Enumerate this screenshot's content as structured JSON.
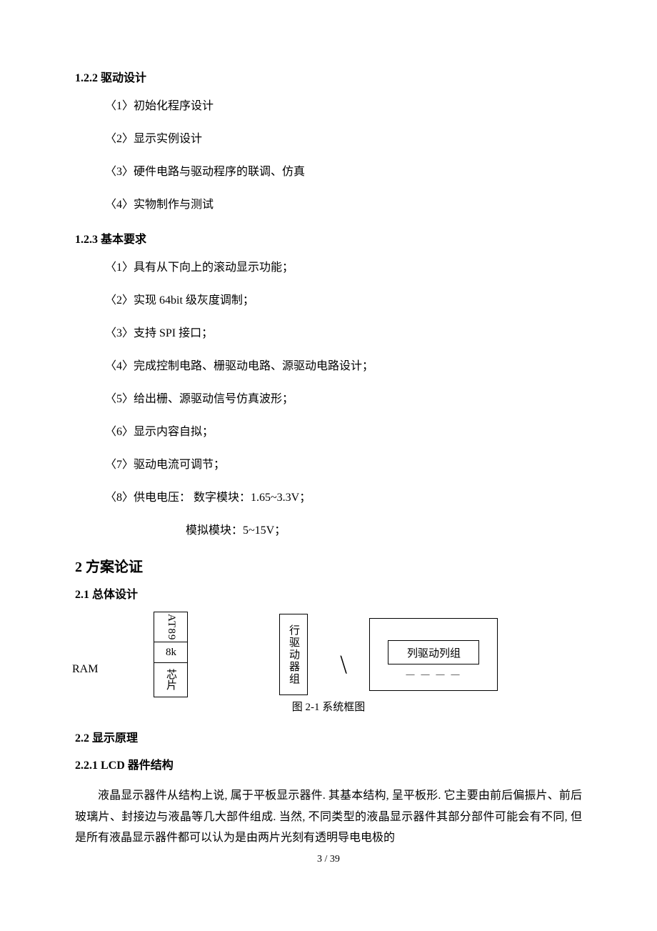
{
  "sec122": {
    "title": "1.2.2  驱动设计",
    "items": [
      "〈1〉初始化程序设计",
      "〈2〉显示实例设计",
      "〈3〉硬件电路与驱动程序的联调、仿真",
      "〈4〉实物制作与测试"
    ]
  },
  "sec123": {
    "title": "1.2.3  基本要求",
    "items": [
      "〈1〉具有从下向上的滚动显示功能；",
      "〈2〉实现 64bit 级灰度调制；",
      "〈3〉支持 SPI 接口；",
      "〈4〉完成控制电路、栅驱动电路、源驱动电路设计；",
      "〈5〉给出栅、源驱动信号仿真波形；",
      "〈6〉显示内容自拟；",
      "〈7〉驱动电流可调节；",
      "〈8〉供电电压：  数字模块：1.65~3.3V；"
    ],
    "extra": "模拟模块：5~15V；"
  },
  "sec2": {
    "title": "2  方案论证"
  },
  "sec21": {
    "title": "2.1  总体设计"
  },
  "diagram": {
    "ram": "RAM",
    "mcu_top": "AT89",
    "mcu_mid": "8k",
    "mcu_bot": "芯片",
    "row_driver": "行驱动器组",
    "col_driver": "列驱动列组",
    "dots": "— — — —",
    "caption": "图 2-1  系统框图"
  },
  "sec22": {
    "title": "2.2  显示原理"
  },
  "sec221": {
    "title": "2.2.1    LCD 器件结构"
  },
  "body": "液晶显示器件从结构上说, 属于平板显示器件. 其基本结构, 呈平板形. 它主要由前后偏振片、前后玻璃片、封接边与液晶等几大部件组成. 当然, 不同类型的液晶显示器件其部分部件可能会有不同, 但是所有液晶显示器件都可以认为是由两片光刻有透明导电电极的",
  "page": "3 / 39"
}
